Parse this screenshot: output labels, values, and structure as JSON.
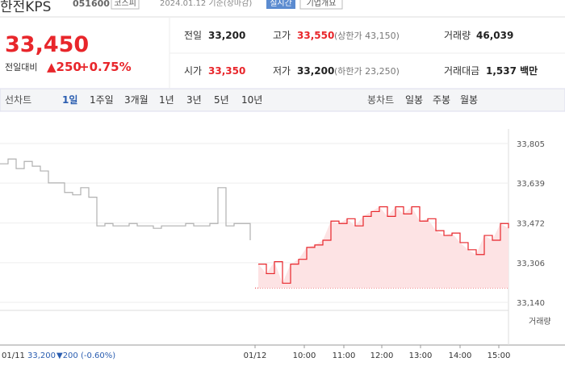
{
  "header": {
    "title": "한전KPS",
    "code": "051600",
    "market": "코스피",
    "date": "2024.01.12 기준(장마감)",
    "realtime": "실시간",
    "company": "기업개요"
  },
  "quote": {
    "price": "33,450",
    "change_label": "전일대비",
    "change": "▲250",
    "rate": "+0.75%"
  },
  "stats": [
    [
      {
        "label": "전일",
        "value": "33,200"
      },
      {
        "label": "고가",
        "value": "33,550",
        "note": "(상한가 43,150)"
      },
      {
        "label": "거래량",
        "value": "46,039"
      }
    ],
    [
      {
        "label": "시가",
        "value": "33,350"
      },
      {
        "label": "저가",
        "value": "33,200",
        "note": "(하한가 23,250)"
      },
      {
        "label": "거래대금",
        "value": "1,537 백만"
      }
    ]
  ],
  "tabs": {
    "line_label": "선차트",
    "line": [
      "1일",
      "1주일",
      "3개월",
      "1년",
      "3년",
      "5년",
      "10년"
    ],
    "candle_label": "봉차트",
    "candle": [
      "일봉",
      "주봉",
      "월봉"
    ]
  },
  "chart_data": {
    "type": "line",
    "series": [
      {
        "color": "#b0b0b0",
        "values": [
          33720,
          33740,
          33700,
          33730,
          33710,
          33690,
          33640,
          33640,
          33600,
          33590,
          33620,
          33580,
          33460,
          33470,
          33460,
          33460,
          33470,
          33460,
          33460,
          33450,
          33460,
          33460,
          33460,
          33470,
          33460,
          33460,
          33470,
          33620,
          33460,
          33470,
          33470,
          33400,
          null,
          null,
          null,
          null,
          null,
          null,
          null,
          null,
          null,
          null,
          null,
          null,
          null,
          null,
          null,
          null,
          null,
          null,
          null,
          null,
          null,
          null,
          null,
          null,
          null,
          null,
          null,
          null,
          null,
          null,
          null,
          null
        ]
      },
      {
        "color": "#e8262b",
        "values": [
          null,
          null,
          null,
          null,
          null,
          null,
          null,
          null,
          null,
          null,
          null,
          null,
          null,
          null,
          null,
          null,
          null,
          null,
          null,
          null,
          null,
          null,
          null,
          null,
          null,
          null,
          null,
          null,
          null,
          null,
          null,
          null,
          33300,
          33260,
          33310,
          33220,
          33300,
          33320,
          33370,
          33380,
          33400,
          33480,
          33470,
          33490,
          33460,
          33500,
          33520,
          33540,
          33500,
          33540,
          33510,
          33540,
          33480,
          33490,
          33440,
          33420,
          33430,
          33390,
          33360,
          33340,
          33420,
          33400,
          33470,
          33450
        ]
      }
    ],
    "xlim": [
      0,
      63
    ],
    "xticks": [
      {
        "value": 31.6,
        "label": "01/12"
      },
      {
        "value": 37.7,
        "label": "10:00"
      },
      {
        "value": 42.6,
        "label": "11:00"
      },
      {
        "value": 47.3,
        "label": "12:00"
      },
      {
        "value": 52.1,
        "label": "13:00"
      },
      {
        "value": 57,
        "label": "14:00"
      },
      {
        "value": 61.8,
        "label": "15:00"
      }
    ],
    "ylim": [
      33140,
      33805
    ],
    "yticks": [
      {
        "value": 33140,
        "label": "33,140"
      },
      {
        "value": 33306,
        "label": "33,306"
      },
      {
        "value": 33472,
        "label": "33,472"
      },
      {
        "value": 33639,
        "label": "33,639"
      },
      {
        "value": 33805,
        "label": "33,805"
      }
    ],
    "baseline": 33200,
    "volume_label": "거래량"
  },
  "footer": {
    "date": "01/11",
    "price": "33,200",
    "change": "▼200 (-0.60%)"
  }
}
